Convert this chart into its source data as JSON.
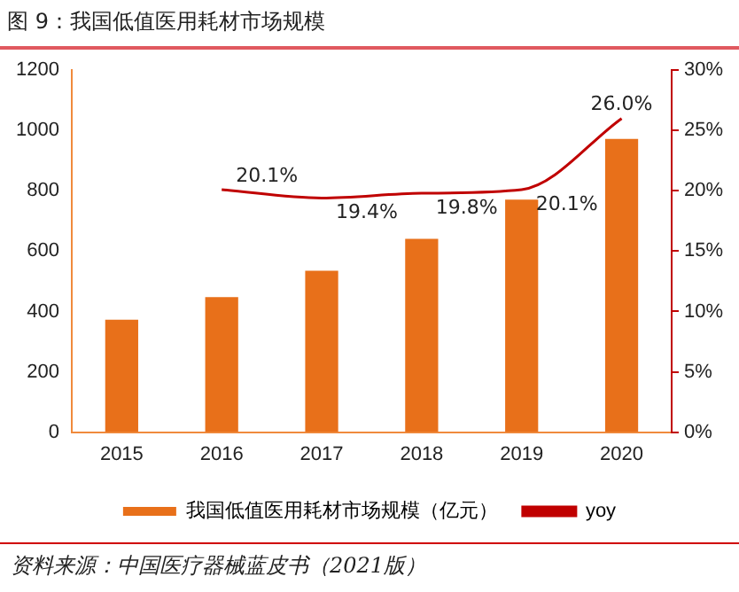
{
  "chart_data": {
    "type": "bar",
    "title": "图 9：我国低值医用耗材市场规模",
    "categories": [
      "2015",
      "2016",
      "2017",
      "2018",
      "2019",
      "2020"
    ],
    "series": [
      {
        "name": "我国低值医用耗材市场规模（亿元）",
        "color": "#e8701a",
        "values": [
          373,
          448,
          535,
          641,
          771,
          972
        ]
      },
      {
        "name": "yoy",
        "type": "line",
        "axis": "y2",
        "color": "#c00000",
        "marker": "none",
        "values": [
          null,
          20.1,
          19.4,
          19.8,
          20.1,
          26.0
        ],
        "value_labels": [
          null,
          "20.1%",
          "19.4%",
          "19.8%",
          "20.1%",
          "26.0%"
        ]
      }
    ],
    "ylim": [
      0,
      1200
    ],
    "yticks": [
      0,
      200,
      400,
      600,
      800,
      1000,
      1200
    ],
    "y2lim": [
      0,
      30
    ],
    "y2ticks": [
      {
        "value": 0,
        "label": "0%"
      },
      {
        "value": 5,
        "label": "5%"
      },
      {
        "value": 10,
        "label": "10%"
      },
      {
        "value": 15,
        "label": "15%"
      },
      {
        "value": 20,
        "label": "20%"
      },
      {
        "value": 25,
        "label": "25%"
      },
      {
        "value": 30,
        "label": "30%"
      }
    ],
    "grid": false,
    "legend": "bottom",
    "annotations": [
      "资料来源：中国医疗器械蓝皮书（2021版）"
    ]
  }
}
